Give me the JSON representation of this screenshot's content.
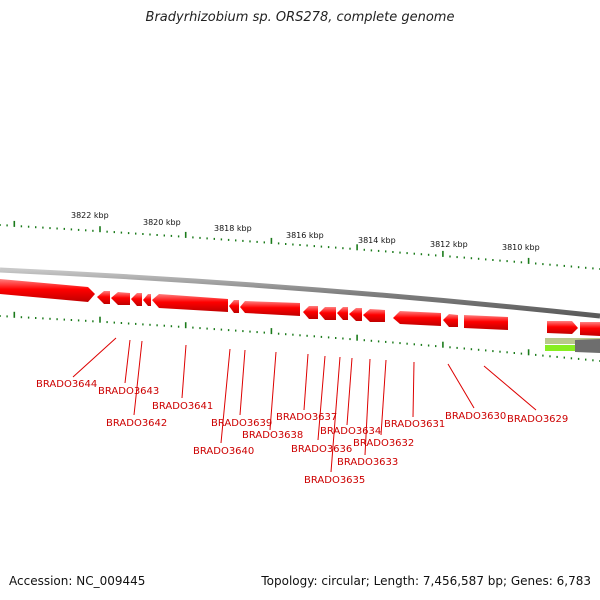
{
  "title": "Bradyrhizobium sp. ORS278, complete genome",
  "footer": {
    "accession": "Accession: NC_009445",
    "summary": "Topology: circular; Length: 7,456,587 bp; Genes: 6,783"
  },
  "colors": {
    "backbone": "#808080",
    "gene": "#ff0000",
    "gene_label": "#cc0000",
    "tick": "#1a7a1a",
    "feature_green": "#88ee22"
  },
  "tick_labels": [
    "3822 kbp",
    "3820 kbp",
    "3818 kbp",
    "3816 kbp",
    "3814 kbp",
    "3812 kbp",
    "3810 kbp"
  ],
  "genes": [
    "BRADO3644",
    "BRADO3643",
    "BRADO3642",
    "BRADO3641",
    "BRADO3640",
    "BRADO3639",
    "BRADO3638",
    "BRADO3637",
    "BRADO3636",
    "BRADO3635",
    "BRADO3634",
    "BRADO3633",
    "BRADO3632",
    "BRADO3631",
    "BRADO3630",
    "BRADO3629"
  ]
}
